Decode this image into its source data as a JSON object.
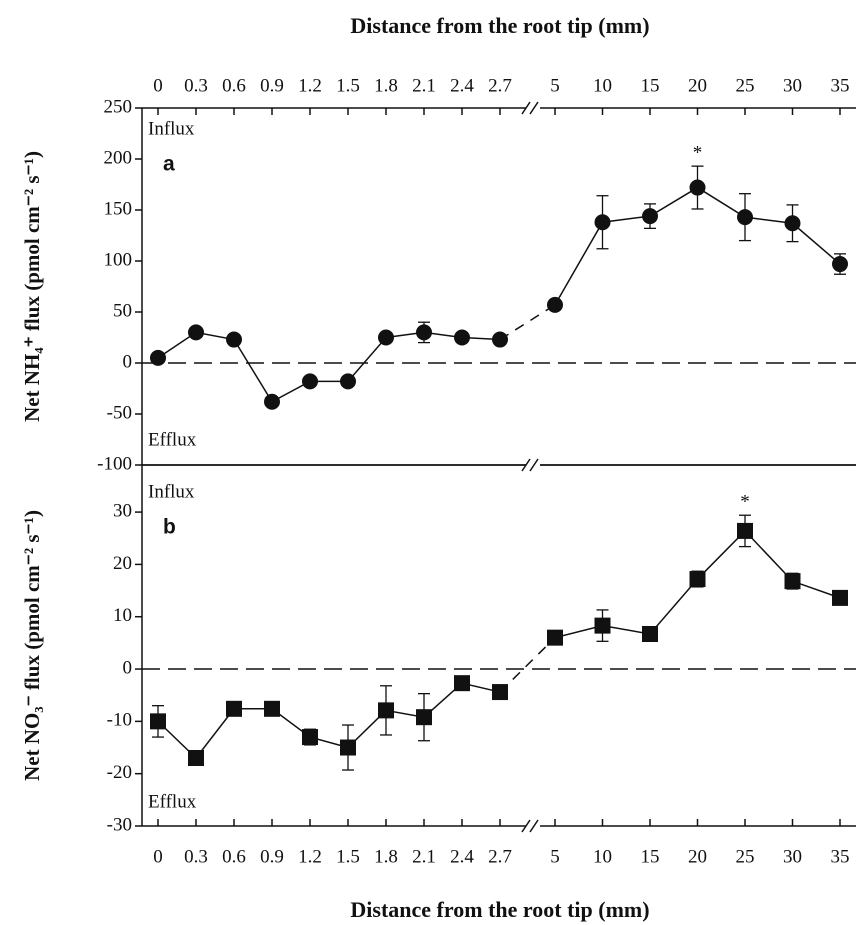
{
  "chart_data": [
    {
      "type": "line",
      "marker": "circle",
      "color": "#111111",
      "xlabel": "Distance from the root tip (mm)",
      "ylabel": "Net NH₄⁺ flux (pmol cm⁻² s⁻¹)",
      "categories": [
        "0",
        "0.3",
        "0.6",
        "0.9",
        "1.2",
        "1.5",
        "1.8",
        "2.1",
        "2.4",
        "2.7",
        "5",
        "10",
        "15",
        "20",
        "25",
        "30",
        "35"
      ],
      "axis_break_after": "2.7",
      "values": [
        5,
        30,
        23,
        -38,
        -18,
        -18,
        25,
        30,
        25,
        23,
        57,
        138,
        144,
        172,
        143,
        137,
        97
      ],
      "errors": [
        null,
        null,
        null,
        null,
        null,
        null,
        null,
        10,
        null,
        null,
        null,
        26,
        12,
        21,
        23,
        18,
        10
      ],
      "ylim": [
        -100,
        250
      ],
      "yticks": [
        -100,
        -50,
        0,
        50,
        100,
        150,
        200,
        250
      ],
      "zero_line": true,
      "panel_label": "a",
      "influx_label": "Influx",
      "efflux_label": "Efflux",
      "significance_label": "*",
      "significant_at": "20"
    },
    {
      "type": "line",
      "marker": "square",
      "color": "#111111",
      "xlabel": "Distance from the root tip (mm)",
      "ylabel": "Net NO₃⁻ flux (pmol cm⁻² s⁻¹)",
      "categories": [
        "0",
        "0.3",
        "0.6",
        "0.9",
        "1.2",
        "1.5",
        "1.8",
        "2.1",
        "2.4",
        "2.7",
        "5",
        "10",
        "15",
        "20",
        "25",
        "30",
        "35"
      ],
      "axis_break_after": "2.7",
      "values": [
        -10,
        -17,
        -7.6,
        -7.6,
        -13,
        -15,
        -7.9,
        -9.2,
        -2.7,
        -4.4,
        6,
        8.3,
        6.7,
        17.2,
        26.4,
        16.8,
        13.6
      ],
      "errors": [
        3,
        1,
        null,
        null,
        1.5,
        4.3,
        4.7,
        4.5,
        null,
        1.2,
        null,
        3,
        null,
        1.5,
        3,
        1.5,
        null
      ],
      "ylim": [
        -30,
        39
      ],
      "yticks": [
        -30,
        -20,
        -10,
        0,
        10,
        20,
        30
      ],
      "zero_line": true,
      "panel_label": "b",
      "influx_label": "Influx",
      "efflux_label": "Efflux",
      "significance_label": "*",
      "significant_at": "25"
    }
  ]
}
